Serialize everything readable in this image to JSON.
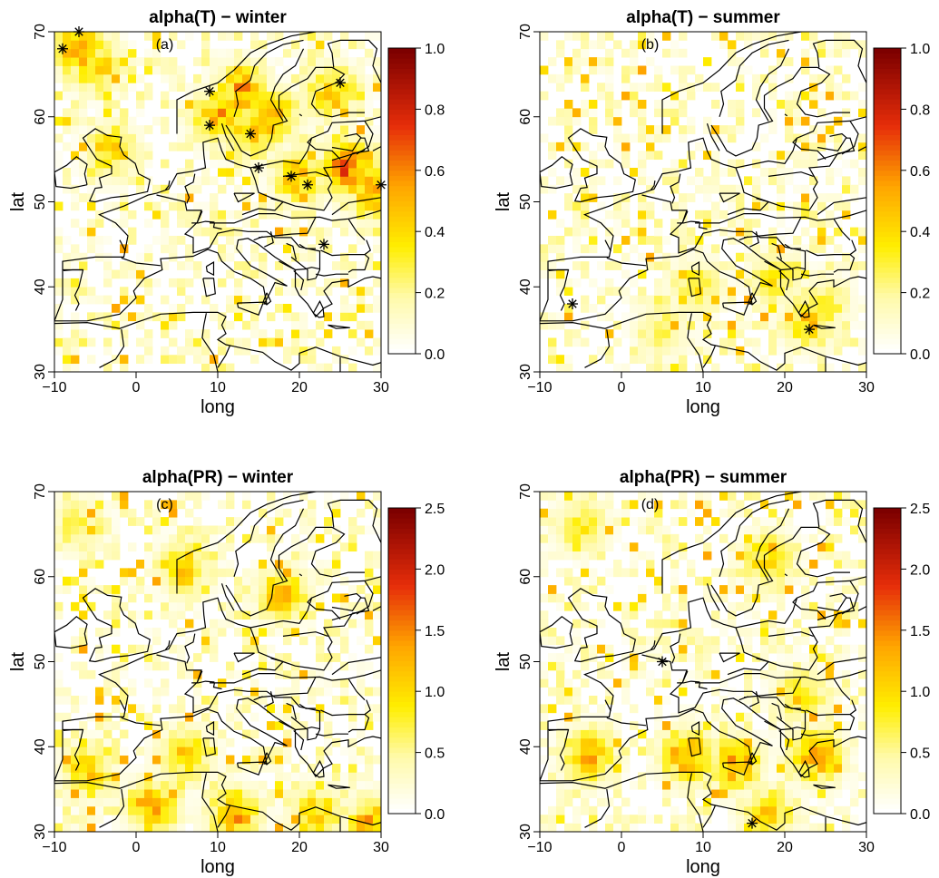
{
  "chart_data": [
    {
      "type": "heatmap",
      "title": "alpha(T) − winter",
      "panel_label": "(a)",
      "xlabel": "long",
      "ylabel": "lat",
      "xlim": [
        -10,
        30
      ],
      "ylim": [
        30,
        70
      ],
      "x_ticks": [
        "−10",
        "0",
        "10",
        "20",
        "30"
      ],
      "y_ticks": [
        "30",
        "40",
        "50",
        "60",
        "70"
      ],
      "colorbar": {
        "range": [
          0,
          1.0
        ],
        "ticks": [
          "0.0",
          "0.2",
          "0.4",
          "0.6",
          "0.8",
          "1.0"
        ]
      },
      "hotspots": [
        {
          "lon": -7,
          "lat": 68,
          "value": 0.6
        },
        {
          "lon": -5,
          "lat": 66,
          "value": 0.5
        },
        {
          "lon": 10,
          "lat": 60,
          "value": 0.6
        },
        {
          "lon": 13,
          "lat": 63,
          "value": 0.6
        },
        {
          "lon": 17,
          "lat": 60,
          "value": 0.55
        },
        {
          "lon": 24,
          "lat": 63,
          "value": 0.5
        },
        {
          "lon": 26,
          "lat": 54,
          "value": 0.75
        },
        {
          "lon": 20,
          "lat": 53,
          "value": 0.55
        },
        {
          "lon": 29,
          "lat": 51,
          "value": 0.6
        },
        {
          "lon": 14,
          "lat": 58,
          "value": 0.5
        },
        {
          "lon": -3,
          "lat": 56,
          "value": 0.45
        }
      ],
      "markers": [
        [
          -9,
          68
        ],
        [
          -7,
          70
        ],
        [
          9,
          63
        ],
        [
          9,
          59
        ],
        [
          14,
          58
        ],
        [
          15,
          54
        ],
        [
          19,
          53
        ],
        [
          21,
          52
        ],
        [
          25,
          64
        ],
        [
          30,
          52
        ],
        [
          23,
          45
        ]
      ]
    },
    {
      "type": "heatmap",
      "title": "alpha(T) − summer",
      "panel_label": "(b)",
      "xlabel": "long",
      "ylabel": "lat",
      "xlim": [
        -10,
        30
      ],
      "ylim": [
        30,
        70
      ],
      "x_ticks": [
        "−10",
        "0",
        "10",
        "20",
        "30"
      ],
      "y_ticks": [
        "30",
        "40",
        "50",
        "60",
        "70"
      ],
      "colorbar": {
        "range": [
          0,
          1.0
        ],
        "ticks": [
          "0.0",
          "0.2",
          "0.4",
          "0.6",
          "0.8",
          "1.0"
        ]
      },
      "hotspots": [
        {
          "lon": 23,
          "lat": 36,
          "value": 0.5
        },
        {
          "lon": 19,
          "lat": 41,
          "value": 0.4
        },
        {
          "lon": 25,
          "lat": 38,
          "value": 0.35
        },
        {
          "lon": 9,
          "lat": 40,
          "value": 0.4
        },
        {
          "lon": 5,
          "lat": 35,
          "value": 0.3
        }
      ],
      "markers": [
        [
          -6,
          38
        ],
        [
          23,
          35
        ]
      ]
    },
    {
      "type": "heatmap",
      "title": "alpha(PR) − winter",
      "panel_label": "(c)",
      "xlabel": "long",
      "ylabel": "lat",
      "xlim": [
        -10,
        30
      ],
      "ylim": [
        30,
        70
      ],
      "x_ticks": [
        "−10",
        "0",
        "10",
        "20",
        "30"
      ],
      "y_ticks": [
        "30",
        "40",
        "50",
        "60",
        "70"
      ],
      "colorbar": {
        "range": [
          0,
          2.5
        ],
        "ticks": [
          "0.0",
          "0.5",
          "1.0",
          "1.5",
          "2.0",
          "2.5"
        ]
      },
      "hotspots": [
        {
          "lon": 2,
          "lat": 33,
          "value": 1.4
        },
        {
          "lon": 12,
          "lat": 32,
          "value": 1.5
        },
        {
          "lon": 22,
          "lat": 32,
          "value": 1.3
        },
        {
          "lon": 29,
          "lat": 31,
          "value": 1.5
        },
        {
          "lon": -6,
          "lat": 37,
          "value": 1.2
        },
        {
          "lon": 6,
          "lat": 39,
          "value": 1.2
        },
        {
          "lon": 18,
          "lat": 58,
          "value": 1.3
        },
        {
          "lon": 6,
          "lat": 61,
          "value": 1.2
        },
        {
          "lon": -7,
          "lat": 66,
          "value": 0.9
        }
      ],
      "markers": []
    },
    {
      "type": "heatmap",
      "title": "alpha(PR) − summer",
      "panel_label": "(d)",
      "xlabel": "long",
      "ylabel": "lat",
      "xlim": [
        -10,
        30
      ],
      "ylim": [
        30,
        70
      ],
      "x_ticks": [
        "−10",
        "0",
        "10",
        "20",
        "30"
      ],
      "y_ticks": [
        "30",
        "40",
        "50",
        "60",
        "70"
      ],
      "colorbar": {
        "range": [
          0,
          2.5
        ],
        "ticks": [
          "0.0",
          "0.5",
          "1.0",
          "1.5",
          "2.0",
          "2.5"
        ]
      },
      "hotspots": [
        {
          "lon": -4,
          "lat": 39,
          "value": 1.5
        },
        {
          "lon": 8,
          "lat": 39,
          "value": 1.6
        },
        {
          "lon": 14,
          "lat": 38,
          "value": 1.5
        },
        {
          "lon": 24,
          "lat": 39,
          "value": 1.6
        },
        {
          "lon": 18,
          "lat": 32,
          "value": 1.3
        },
        {
          "lon": -5,
          "lat": 66,
          "value": 1.0
        },
        {
          "lon": 18,
          "lat": 62,
          "value": 1.2
        },
        {
          "lon": 22,
          "lat": 46,
          "value": 1.1
        }
      ],
      "markers": [
        [
          5,
          50
        ],
        [
          16,
          31
        ]
      ]
    }
  ]
}
